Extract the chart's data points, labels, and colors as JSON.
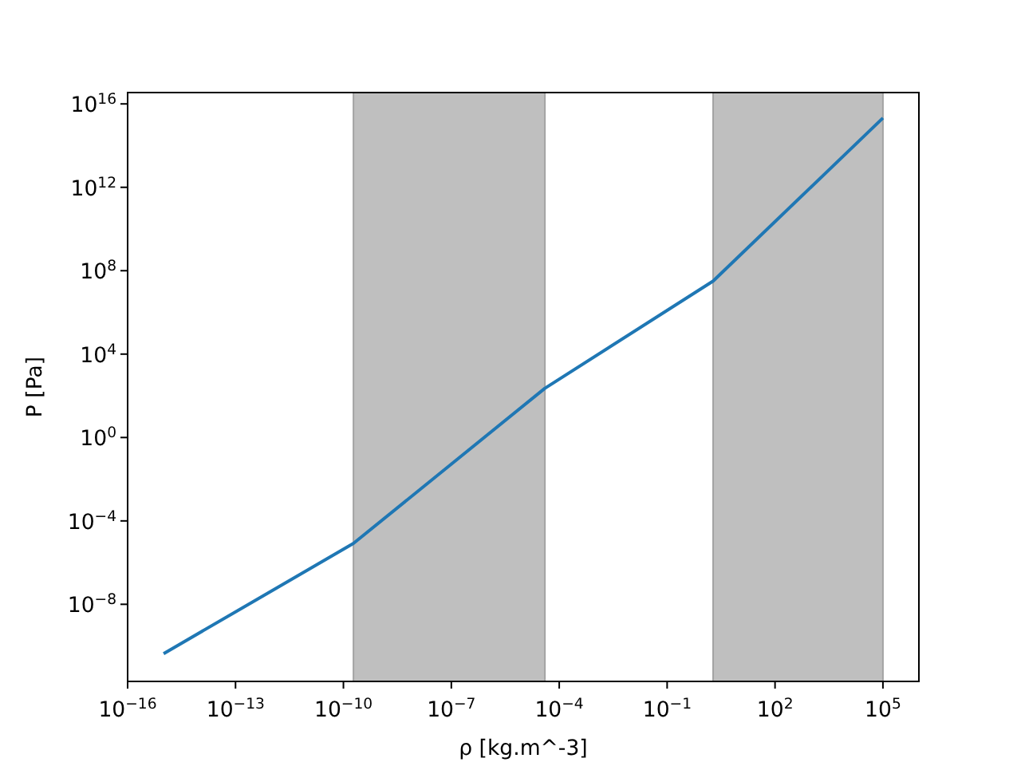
{
  "chart_data": {
    "type": "line",
    "xlabel": "ρ [kg.m^-3]",
    "ylabel": "P [Pa]",
    "x": [
      1e-15,
      1.9e-10,
      4e-05,
      1.9,
      100000.0
    ],
    "values": [
      4.3e-11,
      8.3e-06,
      230,
      32000000.0,
      2100000000000000.0
    ],
    "color": "#1f77b4",
    "line_style": "solid",
    "log": "xy",
    "xlim": [
      1e-16,
      1000000.0
    ],
    "ylim": [
      2e-12,
      3.5e+16
    ],
    "xticks": [
      {
        "value": 1e-16,
        "label": "10$^{−16}$"
      },
      {
        "value": 1e-13,
        "label": "10$^{−13}$"
      },
      {
        "value": 1e-10,
        "label": "10$^{−10}$"
      },
      {
        "value": 1e-07,
        "label": "10$^{−7}$"
      },
      {
        "value": 0.0001,
        "label": "10$^{−4}$"
      },
      {
        "value": 0.1,
        "label": "10$^{−1}$"
      },
      {
        "value": 100,
        "label": "10$^{2}$"
      },
      {
        "value": 100000.0,
        "label": "10$^{5}$"
      }
    ],
    "yticks": [
      {
        "value": 1e-08,
        "label": "10$^{−8}$"
      },
      {
        "value": 0.0001,
        "label": "10$^{−4}$"
      },
      {
        "value": 1,
        "label": "10$^{0}$"
      },
      {
        "value": 10000.0,
        "label": "10$^{4}$"
      },
      {
        "value": 100000000.0,
        "label": "10$^{8}$"
      },
      {
        "value": 1000000000000.0,
        "label": "10$^{12}$"
      },
      {
        "value": 1e+16,
        "label": "10$^{16}$"
      }
    ],
    "bands": [
      {
        "axis": "x",
        "from": 1.9e-10,
        "to": 4e-05,
        "color": "#bfbfbf"
      },
      {
        "axis": "x",
        "from": 1.9,
        "to": 100000.0,
        "color": "#bfbfbf"
      }
    ]
  }
}
